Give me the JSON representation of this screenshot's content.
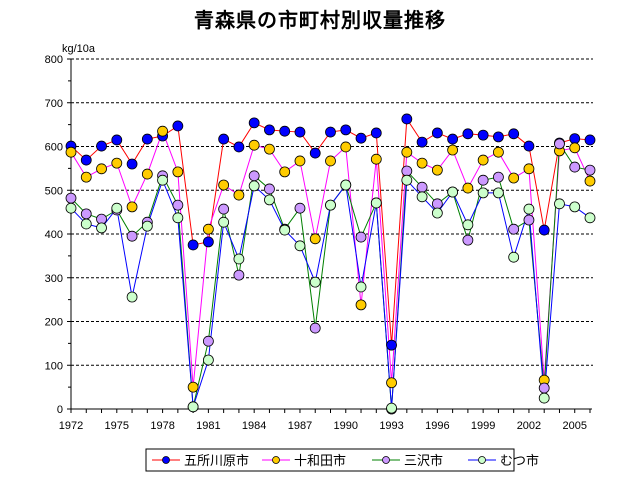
{
  "chart_data": {
    "type": "line",
    "title": "青森県の市町村別収量推移",
    "ylabel": "kg/10a",
    "xlabel": "",
    "ylim": [
      0,
      800
    ],
    "yticks": [
      0,
      100,
      200,
      300,
      400,
      500,
      600,
      700,
      800
    ],
    "xlim": [
      1972,
      2006
    ],
    "xticks": [
      1972,
      1975,
      1978,
      1981,
      1984,
      1987,
      1990,
      1993,
      1996,
      1999,
      2002,
      2005
    ],
    "grid": "horizontal dashed",
    "legend": "bottom",
    "x": [
      1972,
      1973,
      1974,
      1975,
      1976,
      1977,
      1978,
      1979,
      1980,
      1981,
      1982,
      1983,
      1984,
      1985,
      1986,
      1987,
      1988,
      1989,
      1990,
      1991,
      1992,
      1993,
      1994,
      1995,
      1996,
      1997,
      1998,
      1999,
      2000,
      2001,
      2002,
      2003,
      2004,
      2005,
      2006
    ],
    "series": [
      {
        "name": "五所川原市",
        "line": "#ff0000",
        "marker": "#0000ff",
        "values": [
          601,
          569,
          601,
          615,
          560,
          617,
          624,
          647,
          375,
          382,
          617,
          599,
          654,
          638,
          635,
          633,
          585,
          633,
          638,
          619,
          631,
          146,
          663,
          610,
          631,
          617,
          629,
          626,
          622,
          629,
          601,
          409,
          608,
          618,
          615
        ]
      },
      {
        "name": "十和田市",
        "line": "#ff00ff",
        "marker": "#ffcc00",
        "values": [
          587,
          530,
          549,
          562,
          462,
          537,
          635,
          542,
          50,
          411,
          512,
          489,
          603,
          594,
          542,
          567,
          389,
          567,
          599,
          238,
          571,
          60,
          587,
          562,
          546,
          592,
          505,
          569,
          587,
          528,
          549,
          66,
          590,
          597,
          521
        ]
      },
      {
        "name": "三沢市",
        "line": "#008000",
        "marker": "#cc99ff",
        "values": [
          482,
          446,
          434,
          455,
          395,
          427,
          533,
          466,
          5,
          155,
          457,
          306,
          533,
          503,
          411,
          459,
          185,
          466,
          512,
          393,
          471,
          0,
          544,
          507,
          469,
          496,
          386,
          523,
          530,
          411,
          432,
          48,
          606,
          553,
          546
        ]
      },
      {
        "name": "むつ市",
        "line": "#0000ff",
        "marker": "#ccffcc",
        "values": [
          459,
          423,
          414,
          459,
          256,
          418,
          523,
          437,
          5,
          112,
          427,
          343,
          510,
          478,
          409,
          373,
          290,
          466,
          512,
          279,
          471,
          2,
          523,
          485,
          448,
          496,
          421,
          494,
          494,
          347,
          457,
          25,
          469,
          462,
          437
        ]
      }
    ]
  }
}
